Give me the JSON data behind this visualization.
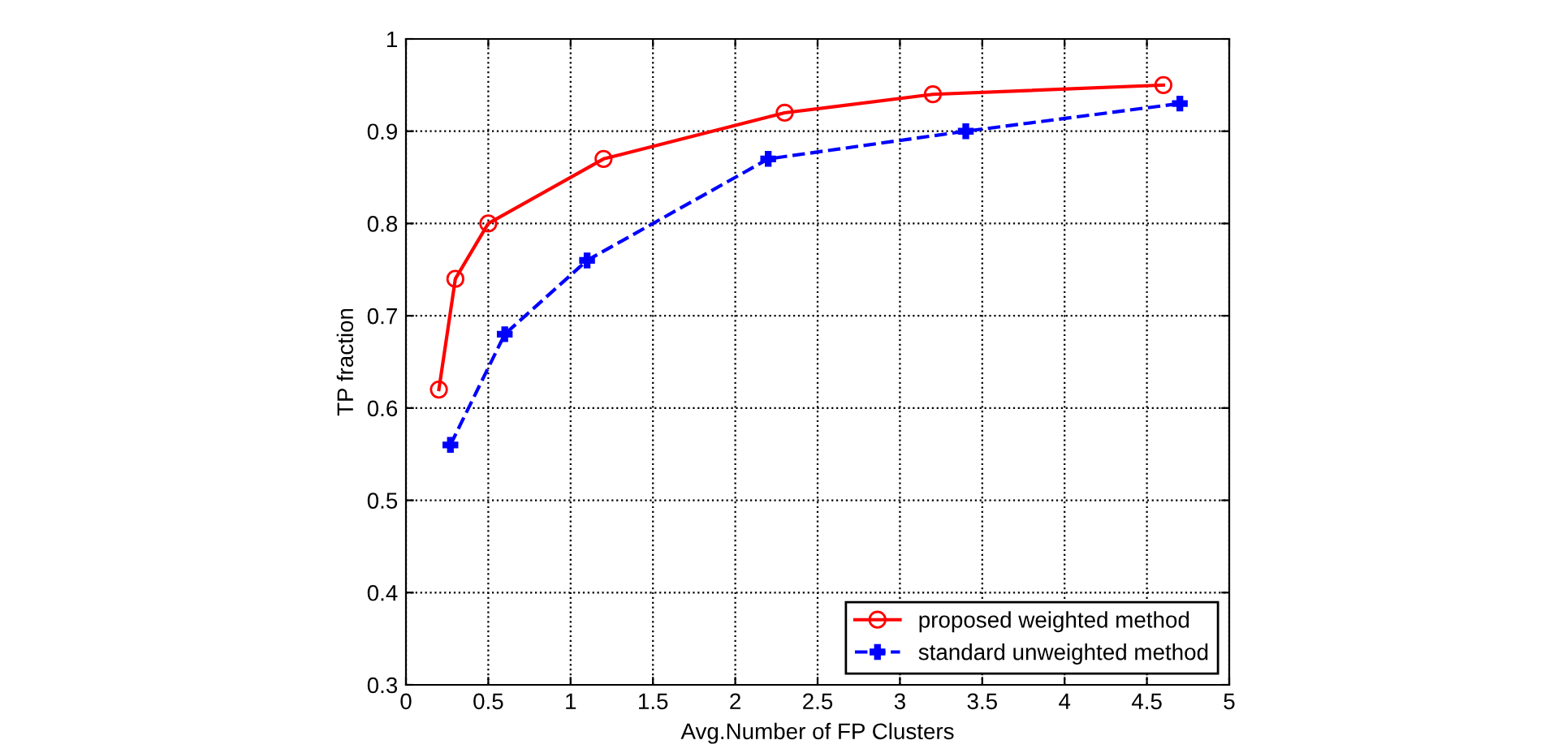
{
  "chart_data": {
    "type": "line",
    "xlabel": "Avg.Number of FP Clusters",
    "ylabel": "TP fraction",
    "xlim": [
      0,
      5
    ],
    "ylim": [
      0.3,
      1
    ],
    "xticks": [
      0,
      0.5,
      1,
      1.5,
      2,
      2.5,
      3,
      3.5,
      4,
      4.5,
      5
    ],
    "yticks": [
      0.3,
      0.4,
      0.5,
      0.6,
      0.7,
      0.8,
      0.9,
      1
    ],
    "grid": true,
    "legend": "bottom right",
    "series": [
      {
        "name": "proposed weighted method",
        "color": "#ff0000",
        "marker": "circle",
        "line_style": "solid",
        "x": [
          0.2,
          0.3,
          0.5,
          1.2,
          2.3,
          3.2,
          4.6
        ],
        "values": [
          0.62,
          0.74,
          0.8,
          0.87,
          0.92,
          0.94,
          0.95
        ]
      },
      {
        "name": "standard unweighted method",
        "color": "#0000ff",
        "marker": "cross",
        "line_style": "dashed",
        "x": [
          0.27,
          0.6,
          1.1,
          2.2,
          3.4,
          4.7
        ],
        "values": [
          0.56,
          0.68,
          0.76,
          0.87,
          0.9,
          0.93
        ]
      }
    ]
  }
}
